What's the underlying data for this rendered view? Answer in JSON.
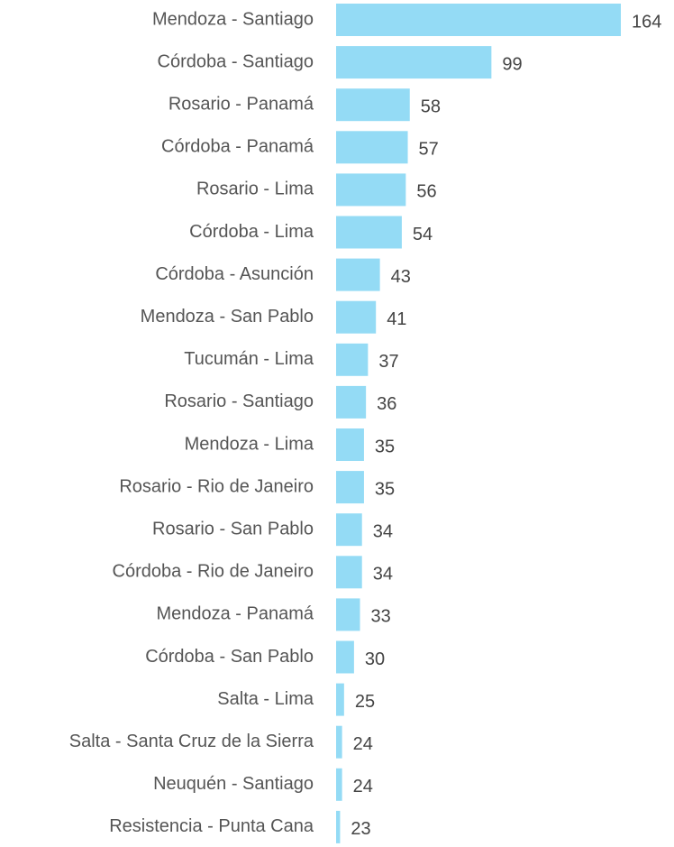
{
  "chart_data": {
    "type": "bar",
    "orientation": "horizontal",
    "categories": [
      "Mendoza - Santiago",
      "Córdoba - Santiago",
      "Rosario - Panamá",
      "Córdoba - Panamá",
      "Rosario - Lima",
      "Córdoba - Lima",
      "Córdoba - Asunción",
      "Mendoza - San Pablo",
      "Tucumán - Lima",
      "Rosario - Santiago",
      "Mendoza - Lima",
      "Rosario - Rio de Janeiro",
      "Rosario - San Pablo",
      "Córdoba - Rio de Janeiro",
      "Mendoza - Panamá",
      "Córdoba - San Pablo",
      "Salta - Lima",
      "Salta - Santa Cruz de la Sierra",
      "Neuquén - Santiago",
      "Resistencia - Punta Cana"
    ],
    "values": [
      164,
      99,
      58,
      57,
      56,
      54,
      43,
      41,
      37,
      36,
      35,
      35,
      34,
      34,
      33,
      30,
      25,
      24,
      24,
      23
    ],
    "color": "#94dbf5",
    "xlim": [
      21,
      164
    ]
  }
}
